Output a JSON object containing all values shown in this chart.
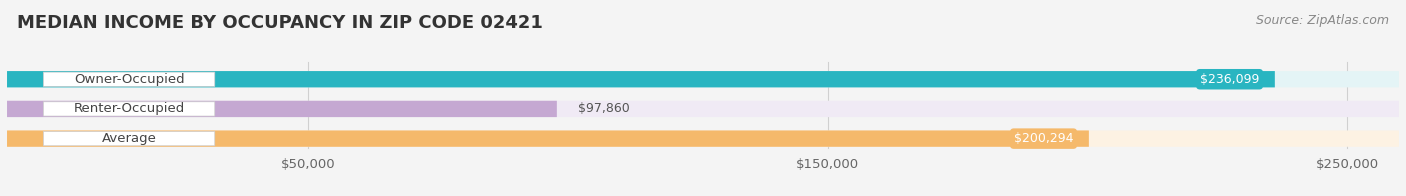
{
  "title": "MEDIAN INCOME BY OCCUPANCY IN ZIP CODE 02421",
  "source": "Source: ZipAtlas.com",
  "categories": [
    "Owner-Occupied",
    "Renter-Occupied",
    "Average"
  ],
  "values": [
    236099,
    97860,
    200294
  ],
  "bar_colors": [
    "#29b5c1",
    "#c5a8d2",
    "#f5b96b"
  ],
  "bar_bg_colors": [
    "#e4f4f6",
    "#f0eaf5",
    "#fdf2e3"
  ],
  "value_labels": [
    "$236,099",
    "$97,860",
    "$200,294"
  ],
  "value_label_inside": [
    true,
    false,
    true
  ],
  "xlim_data": [
    0,
    260000
  ],
  "xaxis_max": 250000,
  "xticks": [
    50000,
    150000,
    250000
  ],
  "xticklabels": [
    "$50,000",
    "$150,000",
    "$250,000"
  ],
  "background_color": "#f4f4f4",
  "title_fontsize": 13,
  "source_fontsize": 9,
  "label_fontsize": 9.5,
  "value_fontsize": 9
}
